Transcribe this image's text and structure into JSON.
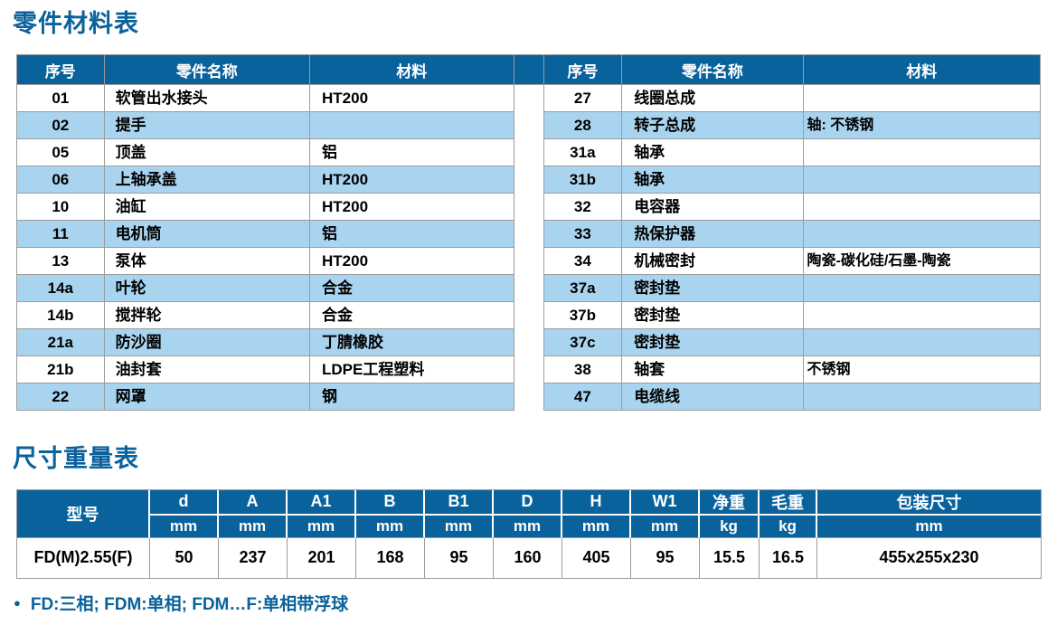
{
  "colors": {
    "accent_blue": "#0a629c",
    "row_light_blue": "#a9d4ef",
    "grid_gray": "#9c9c9c",
    "header_text": "#ffffff",
    "body_text": "#000000"
  },
  "parts_section": {
    "title": "零件材料表",
    "headers": {
      "index": "序号",
      "part_name": "零件名称",
      "material": "材料"
    },
    "left_rows": [
      {
        "no": "01",
        "name": "软管出水接头",
        "material": "HT200"
      },
      {
        "no": "02",
        "name": "提手",
        "material": ""
      },
      {
        "no": "05",
        "name": "顶盖",
        "material": "铝"
      },
      {
        "no": "06",
        "name": "上轴承盖",
        "material": "HT200"
      },
      {
        "no": "10",
        "name": "油缸",
        "material": "HT200"
      },
      {
        "no": "11",
        "name": "电机筒",
        "material": "铝"
      },
      {
        "no": "13",
        "name": "泵体",
        "material": "HT200"
      },
      {
        "no": "14a",
        "name": "叶轮",
        "material": "合金"
      },
      {
        "no": "14b",
        "name": "搅拌轮",
        "material": "合金"
      },
      {
        "no": "21a",
        "name": "防沙圈",
        "material": "丁腈橡胶"
      },
      {
        "no": "21b",
        "name": "油封套",
        "material": "LDPE工程塑料"
      },
      {
        "no": "22",
        "name": "网罩",
        "material": "钢"
      }
    ],
    "right_rows": [
      {
        "no": "27",
        "name": "线圈总成",
        "material": ""
      },
      {
        "no": "28",
        "name": "转子总成",
        "material": "轴: 不锈钢"
      },
      {
        "no": "31a",
        "name": "轴承",
        "material": ""
      },
      {
        "no": "31b",
        "name": "轴承",
        "material": ""
      },
      {
        "no": "32",
        "name": "电容器",
        "material": ""
      },
      {
        "no": "33",
        "name": "热保护器",
        "material": ""
      },
      {
        "no": "34",
        "name": "机械密封",
        "material": "陶瓷-碳化硅/石墨-陶瓷"
      },
      {
        "no": "37a",
        "name": "密封垫",
        "material": ""
      },
      {
        "no": "37b",
        "name": "密封垫",
        "material": ""
      },
      {
        "no": "37c",
        "name": "密封垫",
        "material": ""
      },
      {
        "no": "38",
        "name": "轴套",
        "material": "不锈钢"
      },
      {
        "no": "47",
        "name": "电缆线",
        "material": ""
      }
    ]
  },
  "dimensions_section": {
    "title": "尺寸重量表",
    "model_header": "型号",
    "columns": [
      {
        "label": "d",
        "unit": "mm"
      },
      {
        "label": "A",
        "unit": "mm"
      },
      {
        "label": "A1",
        "unit": "mm"
      },
      {
        "label": "B",
        "unit": "mm"
      },
      {
        "label": "B1",
        "unit": "mm"
      },
      {
        "label": "D",
        "unit": "mm"
      },
      {
        "label": "H",
        "unit": "mm"
      },
      {
        "label": "W1",
        "unit": "mm"
      },
      {
        "label": "净重",
        "unit": "kg"
      },
      {
        "label": "毛重",
        "unit": "kg"
      },
      {
        "label": "包装尺寸",
        "unit": "mm"
      }
    ],
    "rows": [
      {
        "model": "FD(M)2.55(F)",
        "values": [
          "50",
          "237",
          "201",
          "168",
          "95",
          "160",
          "405",
          "95",
          "15.5",
          "16.5",
          "455x255x230"
        ]
      }
    ]
  },
  "footnote": {
    "bullet": "●",
    "text": "FD:三相; FDM:单相; FDM…F:单相带浮球"
  }
}
